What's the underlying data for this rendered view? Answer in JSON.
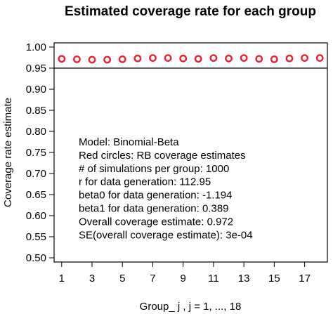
{
  "chart_data": {
    "type": "scatter",
    "title": "Estimated coverage rate for each group",
    "xlabel": "Group_ j ,  j = 1, ..., 18",
    "ylabel": "Coverage rate estimate",
    "xlim": [
      0.5,
      18.5
    ],
    "ylim": [
      0.49,
      1.01
    ],
    "xticks": [
      1,
      3,
      5,
      7,
      9,
      11,
      13,
      15,
      17
    ],
    "yticks": [
      "0.50",
      "0.55",
      "0.60",
      "0.65",
      "0.70",
      "0.75",
      "0.80",
      "0.85",
      "0.90",
      "0.95",
      "1.00"
    ],
    "reference_line": {
      "y": 0.95,
      "color": "#000000"
    },
    "grid": false,
    "series": [
      {
        "marker": "open-circle",
        "color": "#e8242f",
        "x": [
          1,
          2,
          3,
          4,
          5,
          6,
          7,
          8,
          9,
          10,
          11,
          12,
          13,
          14,
          15,
          16,
          17,
          18
        ],
        "values": [
          0.972,
          0.971,
          0.97,
          0.97,
          0.971,
          0.973,
          0.974,
          0.974,
          0.973,
          0.972,
          0.974,
          0.973,
          0.974,
          0.972,
          0.971,
          0.973,
          0.974,
          0.974
        ]
      }
    ],
    "annotations": [
      "Model:  Binomial-Beta",
      "Red circles: RB coverage estimates",
      "# of simulations per group:  1000",
      "r for data generation:  112.95",
      "beta0 for data generation: -1.194",
      "beta1 for data generation: 0.389",
      "Overall coverage estimate:  0.972",
      "SE(overall coverage estimate):  3e-04"
    ]
  }
}
